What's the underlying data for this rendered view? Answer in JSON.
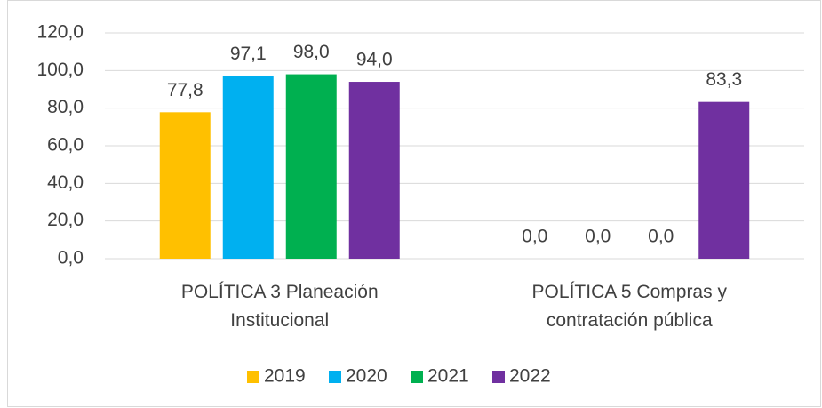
{
  "chart_data": {
    "type": "bar",
    "categories": [
      "POLÍTICA 3 Planeación Institucional",
      "POLÍTICA 5 Compras y contratación pública"
    ],
    "series": [
      {
        "name": "2019",
        "color": "#ffc000",
        "values": [
          77.8,
          0
        ],
        "value_labels": [
          "77,8",
          "0,0"
        ]
      },
      {
        "name": "2020",
        "color": "#00b0f0",
        "values": [
          97.1,
          0
        ],
        "value_labels": [
          "97,1",
          "0,0"
        ]
      },
      {
        "name": "2021",
        "color": "#00b050",
        "values": [
          98.0,
          0
        ],
        "value_labels": [
          "98,0",
          "0,0"
        ]
      },
      {
        "name": "2022",
        "color": "#7030a0",
        "values": [
          94.0,
          83.3
        ],
        "value_labels": [
          "94,0",
          "83,3"
        ]
      }
    ],
    "ylim": [
      0,
      120
    ],
    "yticks": [
      {
        "value": 0,
        "label": "0,0"
      },
      {
        "value": 20,
        "label": "20,0"
      },
      {
        "value": 40,
        "label": "40,0"
      },
      {
        "value": 60,
        "label": "60,0"
      },
      {
        "value": 80,
        "label": "80,0"
      },
      {
        "value": 100,
        "label": "100,0"
      },
      {
        "value": 120,
        "label": "120,0"
      }
    ],
    "grid": true,
    "legend": "bottom"
  }
}
